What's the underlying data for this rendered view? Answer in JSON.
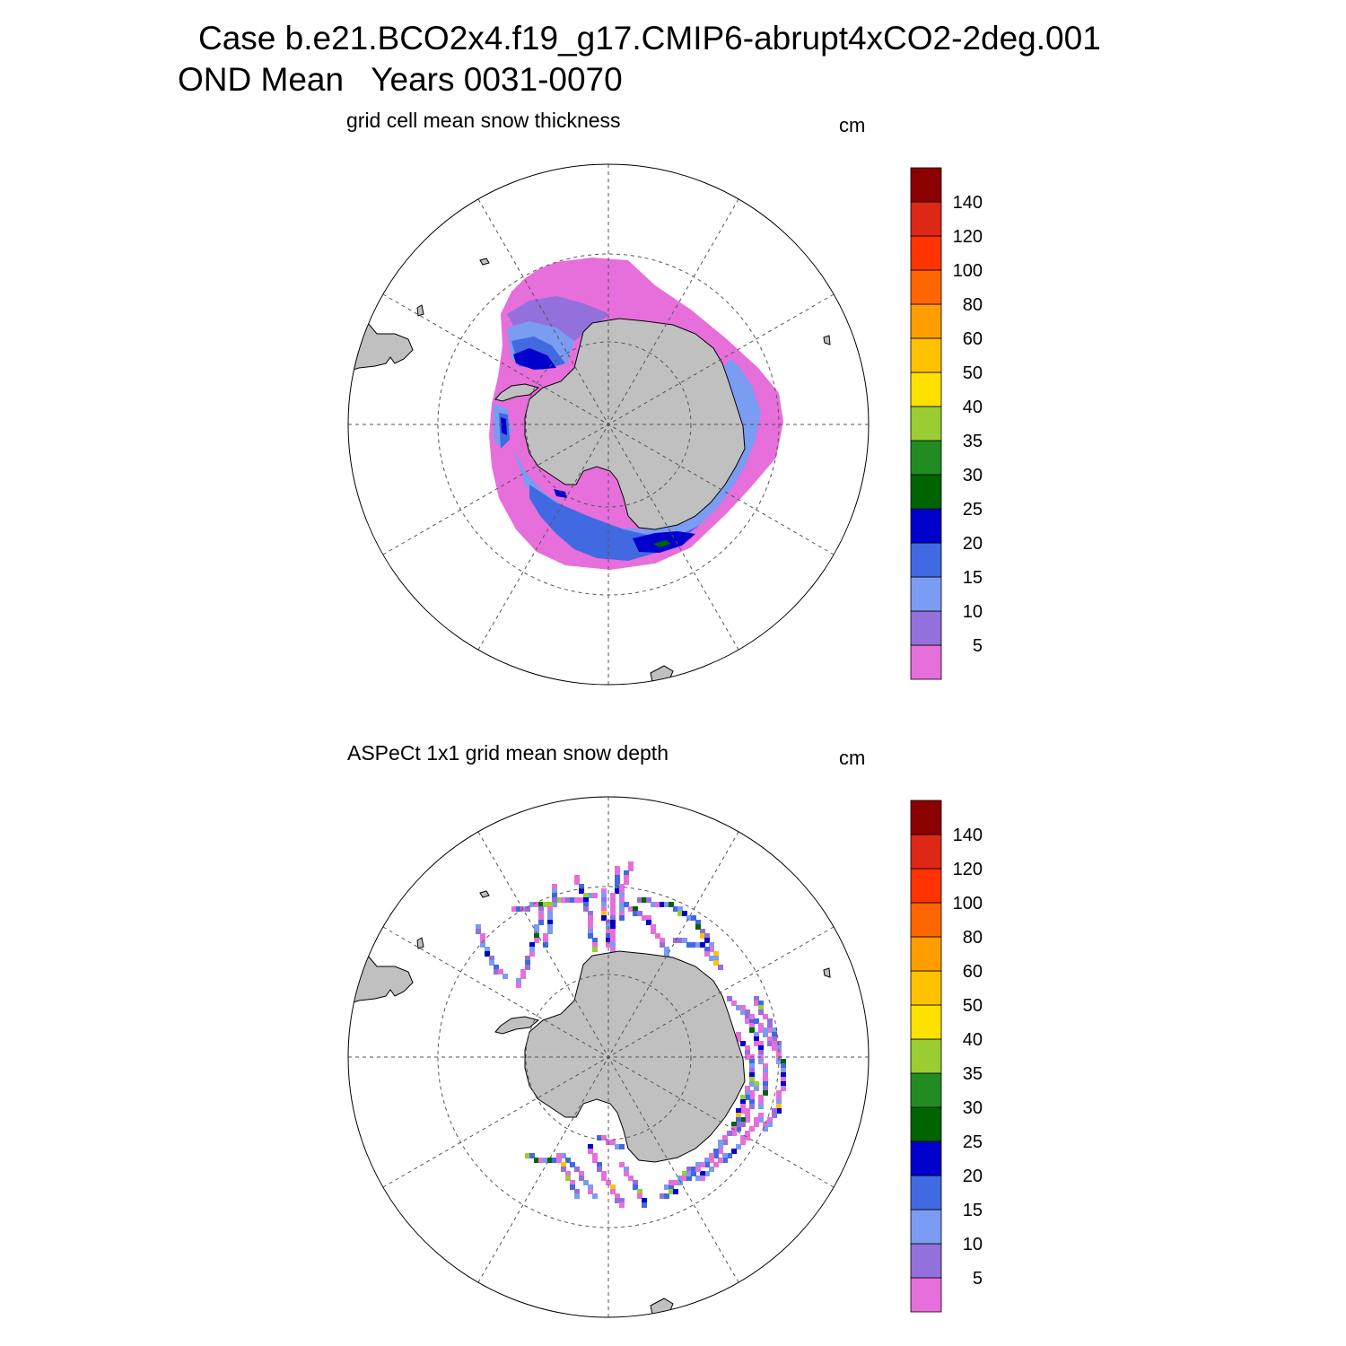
{
  "title": {
    "line1": "Case b.e21.BCO2x4.f19_g17.CMIP6-abrupt4xCO2-2deg.001",
    "line2": "OND Mean   Years 0031-0070"
  },
  "colorbar": {
    "units": "cm",
    "levels": [
      "5",
      "10",
      "15",
      "20",
      "25",
      "30",
      "35",
      "40",
      "50",
      "60",
      "80",
      "100",
      "120",
      "140"
    ],
    "colors": [
      "#e76fdb",
      "#9370db",
      "#7a9cf2",
      "#4169e1",
      "#0000cd",
      "#006400",
      "#228b22",
      "#9acd32",
      "#ffe100",
      "#ffc200",
      "#ff9d00",
      "#ff6600",
      "#ff3300",
      "#dc2814",
      "#8b0000"
    ]
  },
  "panels": [
    {
      "id": "model",
      "title": "grid cell mean snow thickness",
      "units": "cm"
    },
    {
      "id": "obs",
      "title": "ASPeCt 1x1 grid mean snow depth",
      "units": "cm"
    }
  ],
  "map_style": {
    "land_color": "#c0c0c0",
    "coast_color": "#000000",
    "grid_style": "dashed"
  }
}
